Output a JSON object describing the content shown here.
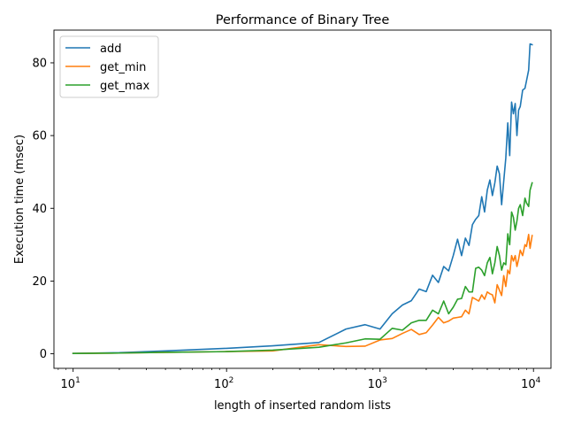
{
  "chart_data": {
    "type": "line",
    "title": "Performance of Binary Tree",
    "xlabel": "length of inserted random lists",
    "ylabel": "Execution time (msec)",
    "x_scale": "log",
    "xlim": [
      7.5,
      13000
    ],
    "ylim": [
      -4,
      89
    ],
    "x_ticks": [
      {
        "value": 10,
        "base": "10",
        "exp": "1"
      },
      {
        "value": 100,
        "base": "10",
        "exp": "2"
      },
      {
        "value": 1000,
        "base": "10",
        "exp": "3"
      },
      {
        "value": 10000,
        "base": "10",
        "exp": "4"
      }
    ],
    "y_ticks": [
      0,
      20,
      40,
      60,
      80
    ],
    "y_tick_labels": [
      "0",
      "20",
      "40",
      "60",
      "80"
    ],
    "grid": false,
    "legend_position": "top-left",
    "series": [
      {
        "name": "add",
        "color": "#1f77b4",
        "points": [
          [
            10,
            0.1
          ],
          [
            20,
            0.3
          ],
          [
            40,
            0.8
          ],
          [
            100,
            1.5
          ],
          [
            200,
            2.2
          ],
          [
            400,
            3.1
          ],
          [
            600,
            6.8
          ],
          [
            800,
            8.0
          ],
          [
            1000,
            6.8
          ],
          [
            1200,
            11.0
          ],
          [
            1400,
            13.4
          ],
          [
            1600,
            14.6
          ],
          [
            1800,
            17.8
          ],
          [
            2000,
            17.1
          ],
          [
            2200,
            21.6
          ],
          [
            2400,
            19.6
          ],
          [
            2600,
            24.0
          ],
          [
            2800,
            22.8
          ],
          [
            3000,
            27.0
          ],
          [
            3200,
            31.5
          ],
          [
            3400,
            27.0
          ],
          [
            3600,
            31.8
          ],
          [
            3800,
            29.8
          ],
          [
            4000,
            35.5
          ],
          [
            4200,
            37.0
          ],
          [
            4400,
            38.0
          ],
          [
            4600,
            43.2
          ],
          [
            4800,
            39.0
          ],
          [
            5000,
            45.0
          ],
          [
            5200,
            47.8
          ],
          [
            5400,
            43.5
          ],
          [
            5600,
            47.0
          ],
          [
            5800,
            51.6
          ],
          [
            6000,
            49.5
          ],
          [
            6200,
            41.0
          ],
          [
            6400,
            47.5
          ],
          [
            6600,
            53.8
          ],
          [
            6800,
            63.5
          ],
          [
            7000,
            54.5
          ],
          [
            7200,
            69.2
          ],
          [
            7400,
            66.0
          ],
          [
            7600,
            68.8
          ],
          [
            7800,
            60.0
          ],
          [
            8000,
            67.0
          ],
          [
            8200,
            68.0
          ],
          [
            8500,
            72.5
          ],
          [
            8800,
            73.0
          ],
          [
            9000,
            75.0
          ],
          [
            9300,
            78.0
          ],
          [
            9500,
            85.2
          ],
          [
            9800,
            85.0
          ]
        ]
      },
      {
        "name": "get_min",
        "color": "#ff7f0e",
        "points": [
          [
            10,
            0.1
          ],
          [
            20,
            0.2
          ],
          [
            40,
            0.4
          ],
          [
            100,
            0.6
          ],
          [
            200,
            0.8
          ],
          [
            400,
            2.5
          ],
          [
            600,
            2.0
          ],
          [
            800,
            2.1
          ],
          [
            1000,
            3.8
          ],
          [
            1200,
            4.2
          ],
          [
            1400,
            5.6
          ],
          [
            1600,
            6.7
          ],
          [
            1800,
            5.3
          ],
          [
            2000,
            5.8
          ],
          [
            2200,
            7.9
          ],
          [
            2400,
            10.0
          ],
          [
            2600,
            8.5
          ],
          [
            2800,
            9.0
          ],
          [
            3000,
            9.8
          ],
          [
            3200,
            10.0
          ],
          [
            3400,
            10.2
          ],
          [
            3600,
            12.0
          ],
          [
            3800,
            11.0
          ],
          [
            4000,
            15.5
          ],
          [
            4200,
            15.0
          ],
          [
            4400,
            14.5
          ],
          [
            4600,
            16.2
          ],
          [
            4800,
            15.0
          ],
          [
            5000,
            17.0
          ],
          [
            5200,
            16.5
          ],
          [
            5400,
            16.2
          ],
          [
            5600,
            14.0
          ],
          [
            5800,
            19.0
          ],
          [
            6000,
            17.5
          ],
          [
            6200,
            16.0
          ],
          [
            6400,
            21.5
          ],
          [
            6600,
            18.5
          ],
          [
            6800,
            23.0
          ],
          [
            7000,
            22.0
          ],
          [
            7200,
            27.0
          ],
          [
            7400,
            25.5
          ],
          [
            7600,
            27.0
          ],
          [
            7800,
            24.0
          ],
          [
            8000,
            26.0
          ],
          [
            8200,
            28.5
          ],
          [
            8500,
            27.0
          ],
          [
            8800,
            30.0
          ],
          [
            9000,
            29.5
          ],
          [
            9300,
            32.8
          ],
          [
            9500,
            29.0
          ],
          [
            9800,
            32.5
          ]
        ]
      },
      {
        "name": "get_max",
        "color": "#2ca02c",
        "points": [
          [
            10,
            0.1
          ],
          [
            20,
            0.2
          ],
          [
            40,
            0.4
          ],
          [
            100,
            0.6
          ],
          [
            200,
            1.0
          ],
          [
            400,
            1.8
          ],
          [
            600,
            3.0
          ],
          [
            800,
            4.1
          ],
          [
            1000,
            4.0
          ],
          [
            1200,
            7.0
          ],
          [
            1400,
            6.5
          ],
          [
            1600,
            8.5
          ],
          [
            1800,
            9.2
          ],
          [
            2000,
            9.2
          ],
          [
            2200,
            12.0
          ],
          [
            2400,
            11.0
          ],
          [
            2600,
            14.5
          ],
          [
            2800,
            11.0
          ],
          [
            3000,
            12.8
          ],
          [
            3200,
            15.0
          ],
          [
            3400,
            15.2
          ],
          [
            3600,
            18.5
          ],
          [
            3800,
            17.0
          ],
          [
            4000,
            17.0
          ],
          [
            4200,
            23.5
          ],
          [
            4400,
            23.8
          ],
          [
            4600,
            23.0
          ],
          [
            4800,
            21.5
          ],
          [
            5000,
            25.0
          ],
          [
            5200,
            26.5
          ],
          [
            5400,
            22.0
          ],
          [
            5600,
            25.0
          ],
          [
            5800,
            29.5
          ],
          [
            6000,
            27.0
          ],
          [
            6200,
            23.0
          ],
          [
            6400,
            25.0
          ],
          [
            6600,
            24.5
          ],
          [
            6800,
            33.0
          ],
          [
            7000,
            30.0
          ],
          [
            7200,
            39.0
          ],
          [
            7400,
            37.5
          ],
          [
            7600,
            34.0
          ],
          [
            7800,
            36.5
          ],
          [
            8000,
            40.0
          ],
          [
            8200,
            41.0
          ],
          [
            8500,
            38.0
          ],
          [
            8800,
            42.8
          ],
          [
            9000,
            41.5
          ],
          [
            9300,
            40.5
          ],
          [
            9500,
            45.0
          ],
          [
            9800,
            47.0
          ]
        ]
      }
    ]
  }
}
